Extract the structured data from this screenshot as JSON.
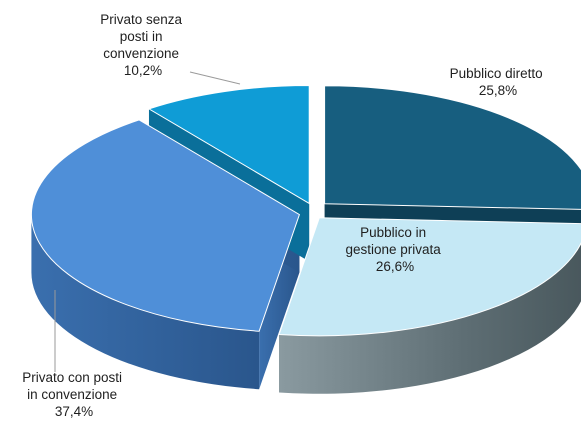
{
  "chart_data": {
    "type": "pie",
    "style": "3d-exploded",
    "slices": [
      {
        "name": "Pubblico diretto",
        "label_lines": [
          "Pubblico diretto"
        ],
        "value_text": "25,8%",
        "value": 25.8,
        "color": "#175E7F",
        "label_color": "#222222"
      },
      {
        "name": "Pubblico in gestione privata",
        "label_lines": [
          "Pubblico in",
          "gestione privata"
        ],
        "value_text": "26,6%",
        "value": 26.6,
        "color": "#C5E8F5",
        "label_color": "#1f1f1f"
      },
      {
        "name": "Privato con posti in convenzione",
        "label_lines": [
          "Privato con posti",
          "in convenzione"
        ],
        "value_text": "37,4%",
        "value": 37.4,
        "color": "#4F8FD8",
        "label_color": "#1f1f1f"
      },
      {
        "name": "Privato senza posti in convenzione",
        "label_lines": [
          "Privato senza",
          "posti in",
          "convenzione"
        ],
        "value_text": "10,2%",
        "value": 10.2,
        "color": "#0F9CD6",
        "label_color": "#1f1f1f"
      }
    ],
    "side_colors": [
      "#0E3F56",
      "#6E8188",
      "#2E5E97",
      "#0A6F9A"
    ]
  }
}
